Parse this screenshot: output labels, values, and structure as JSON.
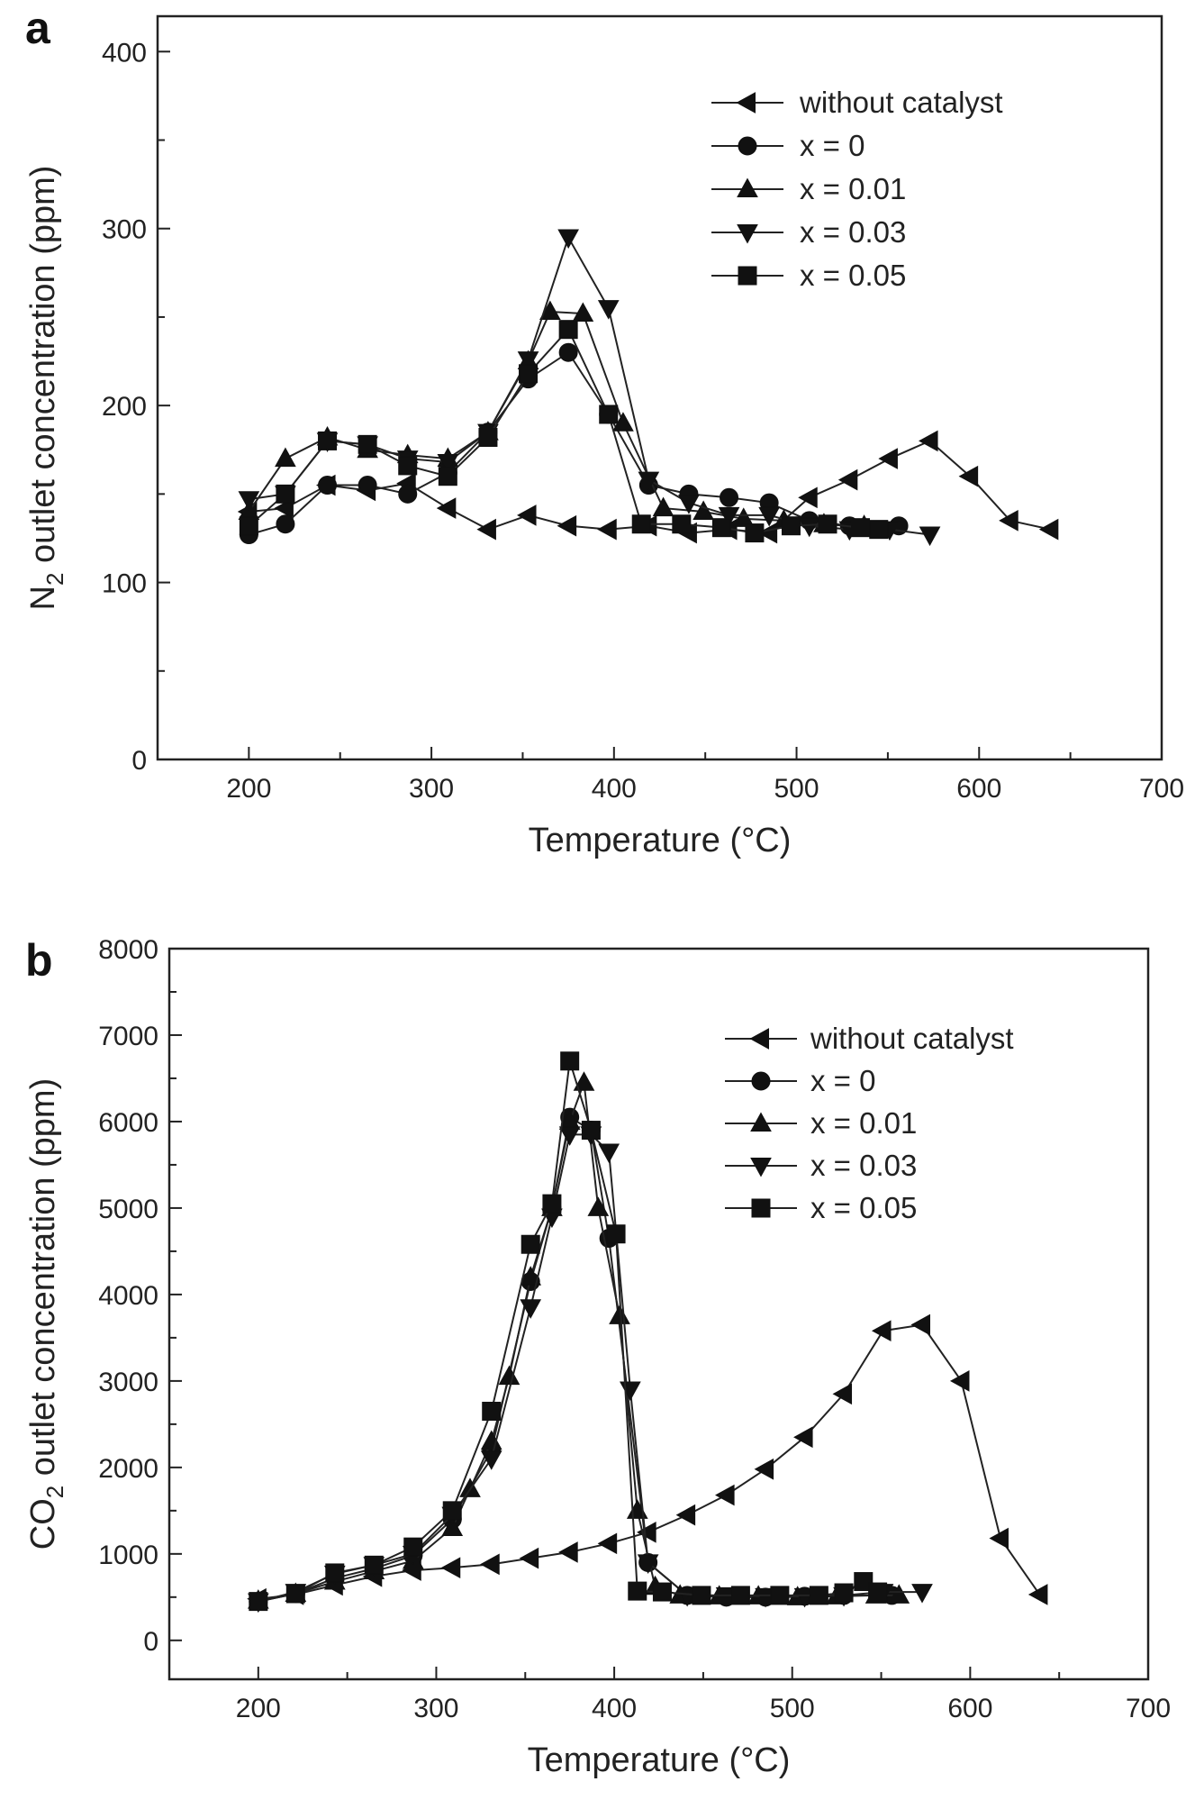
{
  "chart_data": [
    {
      "type": "line",
      "panel_label": "a",
      "xlabel": "Temperature (°C)",
      "ylabel_prefix": "N",
      "ylabel_sub": "2",
      "ylabel_suffix": " outlet concentration (ppm)",
      "xlim": [
        150,
        700
      ],
      "ylim": [
        0,
        420
      ],
      "x_ticks": [
        200,
        300,
        400,
        500,
        600,
        700
      ],
      "y_ticks": [
        0,
        100,
        200,
        300,
        400
      ],
      "legend_position": "top-right",
      "grid": false,
      "series": [
        {
          "name": "without catalyst",
          "marker": "triangle-left",
          "x": [
            200,
            220,
            243,
            265,
            287,
            309,
            331,
            353,
            375,
            397,
            419,
            441,
            463,
            485,
            507,
            529,
            551,
            573,
            595,
            617,
            639
          ],
          "y": [
            140,
            142,
            155,
            152,
            156,
            142,
            130,
            138,
            132,
            130,
            132,
            128,
            130,
            128,
            148,
            158,
            170,
            180,
            160,
            135,
            130
          ]
        },
        {
          "name": "x = 0",
          "marker": "circle",
          "x": [
            200,
            220,
            243,
            265,
            287,
            309,
            331,
            353,
            375,
            397,
            419,
            441,
            463,
            485,
            507,
            529,
            556
          ],
          "y": [
            127,
            133,
            155,
            155,
            150,
            162,
            185,
            215,
            230,
            195,
            155,
            150,
            148,
            145,
            135,
            132,
            132
          ]
        },
        {
          "name": "x = 0.01",
          "marker": "triangle-up",
          "x": [
            200,
            220,
            243,
            265,
            287,
            309,
            331,
            353,
            365,
            383,
            405,
            427,
            449,
            471,
            493,
            515,
            537
          ],
          "y": [
            140,
            170,
            182,
            175,
            172,
            170,
            185,
            225,
            253,
            252,
            190,
            142,
            140,
            136,
            135,
            133,
            132
          ]
        },
        {
          "name": "x = 0.03",
          "marker": "triangle-down",
          "x": [
            200,
            220,
            243,
            265,
            287,
            309,
            331,
            353,
            375,
            397,
            419,
            441,
            463,
            485,
            507,
            529,
            551,
            573
          ],
          "y": [
            147,
            150,
            180,
            178,
            170,
            168,
            185,
            226,
            295,
            255,
            158,
            145,
            138,
            138,
            132,
            130,
            130,
            127
          ]
        },
        {
          "name": "x = 0.05",
          "marker": "square",
          "x": [
            200,
            220,
            243,
            265,
            287,
            309,
            331,
            353,
            375,
            397,
            415,
            437,
            459,
            477,
            497,
            517,
            535,
            545
          ],
          "y": [
            132,
            150,
            180,
            178,
            166,
            160,
            182,
            218,
            243,
            195,
            133,
            133,
            131,
            128,
            132,
            133,
            131,
            130
          ]
        }
      ]
    },
    {
      "type": "line",
      "panel_label": "b",
      "xlabel": "Temperature (°C)",
      "ylabel_prefix": "CO",
      "ylabel_sub": "2",
      "ylabel_suffix": " outlet concentration (ppm)",
      "xlim": [
        150,
        700
      ],
      "ylim": [
        -450,
        8000
      ],
      "x_ticks": [
        200,
        300,
        400,
        500,
        600,
        700
      ],
      "y_ticks": [
        0,
        1000,
        2000,
        3000,
        4000,
        5000,
        6000,
        7000,
        8000
      ],
      "legend_position": "top-right",
      "grid": false,
      "series": [
        {
          "name": "without catalyst",
          "marker": "triangle-left",
          "x": [
            200,
            221,
            243,
            265,
            287,
            309,
            331,
            353,
            375,
            397,
            419,
            441,
            463,
            485,
            507,
            529,
            551,
            573,
            595,
            617,
            639
          ],
          "y": [
            480,
            530,
            640,
            740,
            810,
            840,
            880,
            950,
            1020,
            1120,
            1250,
            1450,
            1680,
            1980,
            2350,
            2850,
            3580,
            3650,
            3000,
            1180,
            530
          ]
        },
        {
          "name": "x = 0",
          "marker": "circle",
          "x": [
            200,
            221,
            243,
            265,
            287,
            309,
            331,
            353,
            365,
            375,
            387,
            397,
            419,
            441,
            463,
            485,
            507,
            529,
            556
          ],
          "y": [
            450,
            540,
            720,
            830,
            980,
            1400,
            2200,
            4150,
            5000,
            6050,
            5900,
            4650,
            900,
            520,
            500,
            500,
            510,
            520,
            520
          ]
        },
        {
          "name": "x = 0.01",
          "marker": "triangle-up",
          "x": [
            200,
            221,
            243,
            265,
            287,
            309,
            319,
            331,
            341,
            353,
            365,
            375,
            383,
            391,
            403,
            413,
            423,
            437,
            459,
            481,
            503,
            525,
            547,
            560
          ],
          "y": [
            460,
            540,
            680,
            800,
            920,
            1300,
            1750,
            2300,
            3050,
            4200,
            5000,
            6000,
            6450,
            5000,
            3750,
            1500,
            620,
            520,
            510,
            510,
            500,
            510,
            520,
            520
          ]
        },
        {
          "name": "x = 0.03",
          "marker": "triangle-down",
          "x": [
            200,
            221,
            243,
            265,
            287,
            309,
            331,
            353,
            365,
            375,
            387,
            397,
            409,
            419,
            441,
            463,
            485,
            507,
            529,
            551,
            573
          ],
          "y": [
            450,
            560,
            770,
            870,
            1000,
            1450,
            2100,
            3850,
            4900,
            5850,
            5850,
            5650,
            2900,
            900,
            520,
            520,
            510,
            510,
            520,
            560,
            560
          ]
        },
        {
          "name": "x = 0.05",
          "marker": "square",
          "x": [
            200,
            221,
            243,
            265,
            287,
            309,
            331,
            353,
            365,
            375,
            387,
            401,
            413,
            427,
            449,
            471,
            493,
            515,
            529,
            540,
            548
          ],
          "y": [
            450,
            540,
            780,
            870,
            1080,
            1500,
            2650,
            4580,
            5050,
            6700,
            5900,
            4700,
            570,
            560,
            520,
            520,
            520,
            520,
            550,
            680,
            560
          ]
        }
      ]
    }
  ]
}
